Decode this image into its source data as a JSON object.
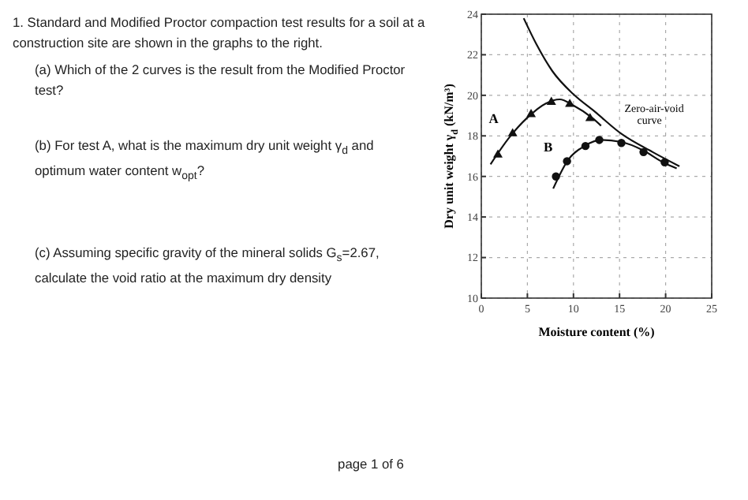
{
  "chart_data": {
    "type": "scatter",
    "xlabel": "Moisture content (%)",
    "ylabel": "Dry unit weight γ$_{d}$ (kN/m³)",
    "xlim": [
      0,
      25
    ],
    "xticks": [
      0,
      5,
      10,
      15,
      20,
      25
    ],
    "ylim": [
      10,
      24
    ],
    "yticks": [
      10,
      12,
      14,
      16,
      18,
      20,
      22,
      24
    ],
    "grid": true,
    "series": [
      {
        "name": "A",
        "marker": "triangle",
        "color": "#111111",
        "x": [
          1.8,
          3.4,
          5.4,
          7.6,
          9.6,
          11.8
        ],
        "values": [
          17.1,
          18.15,
          19.1,
          19.7,
          19.6,
          18.9
        ]
      },
      {
        "name": "B",
        "marker": "circle",
        "color": "#111111",
        "x": [
          8.1,
          9.3,
          11.3,
          12.8,
          15.2,
          17.6,
          19.9
        ],
        "values": [
          16.0,
          16.75,
          17.5,
          17.8,
          17.65,
          17.2,
          16.7
        ]
      },
      {
        "type": "line",
        "color": "#111111",
        "x": [
          1.0,
          3,
          5,
          7,
          8.5,
          10,
          12,
          13
        ],
        "values": [
          16.6,
          17.9,
          18.9,
          19.6,
          19.8,
          19.5,
          18.9,
          18.5
        ]
      },
      {
        "type": "line",
        "color": "#111111",
        "x": [
          7.8,
          9.4,
          11.2,
          13,
          15.2,
          17.5,
          19.7,
          21.2
        ],
        "values": [
          15.4,
          16.8,
          17.5,
          17.8,
          17.7,
          17.3,
          16.7,
          16.4
        ]
      },
      {
        "type": "line",
        "name": "Zero-air-void curve",
        "color": "#111111",
        "x": [
          4.6,
          6.0,
          7.7,
          10,
          12.3,
          15.2,
          18.6,
          21.5
        ],
        "values": [
          23.8,
          22.5,
          21.2,
          20.05,
          19.2,
          18.1,
          17.2,
          16.5
        ]
      }
    ],
    "annotations": [
      "1. Standard and Modified Proctor compaction test results for a soil at a construction site are shown in the graphs to the right.",
      "(a) Which of the 2 curves is the result from the Modified Proctor test?",
      "(b) For test A, what is the maximum dry unit weight γ$_{d}$ and optimum water content w$_{opt}$?",
      "(c) Assuming specific gravity of the mineral solids G$_{s}$=2.67, calculate the void ratio at the maximum dry density",
      "page 1 of 6"
    ]
  }
}
